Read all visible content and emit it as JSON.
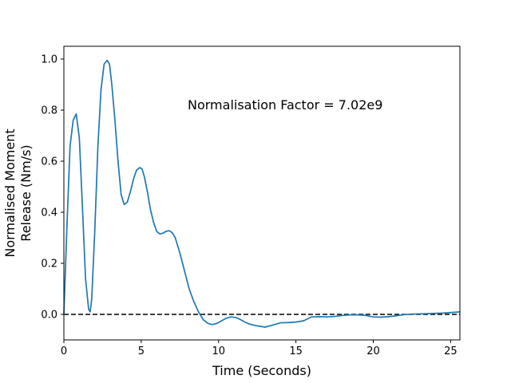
{
  "chart_data": {
    "type": "line",
    "xlabel": "Time (Seconds)",
    "ylabel_lines": [
      "Normalised Moment",
      "Release (Nm/s)"
    ],
    "annotation": "Normalisation Factor = 7.02e9",
    "xlim": [
      0,
      25.6
    ],
    "ylim": [
      -0.1,
      1.05
    ],
    "xticks": [
      0,
      5,
      10,
      15,
      20,
      25
    ],
    "xtick_labels": [
      "0",
      "5",
      "10",
      "15",
      "20",
      "25"
    ],
    "yticks": [
      0.0,
      0.2,
      0.4,
      0.6,
      0.8,
      1.0
    ],
    "ytick_labels": [
      "0.0",
      "0.2",
      "0.4",
      "0.6",
      "0.8",
      "1.0"
    ],
    "grid": false,
    "reference_line": {
      "y": 0,
      "style": "dashed",
      "color": "#000000"
    },
    "series": [
      {
        "color": "#1f77b4",
        "x": [
          0,
          0.2,
          0.4,
          0.6,
          0.8,
          1.0,
          1.2,
          1.4,
          1.6,
          1.7,
          1.8,
          2.0,
          2.2,
          2.4,
          2.6,
          2.8,
          2.95,
          3.1,
          3.3,
          3.5,
          3.7,
          3.9,
          4.1,
          4.3,
          4.5,
          4.7,
          4.9,
          5.05,
          5.2,
          5.4,
          5.6,
          5.8,
          6.0,
          6.2,
          6.4,
          6.6,
          6.8,
          7.0,
          7.2,
          7.5,
          7.8,
          8.1,
          8.4,
          8.7,
          9.0,
          9.3,
          9.6,
          9.9,
          10.2,
          10.5,
          10.8,
          11.1,
          11.4,
          11.7,
          12.0,
          12.5,
          13.0,
          13.5,
          14.0,
          14.5,
          15.0,
          15.5,
          16.0,
          16.5,
          17.0,
          17.5,
          18.0,
          18.5,
          19.0,
          19.5,
          20.0,
          20.5,
          21.0,
          21.5,
          22.0,
          22.5,
          23.0,
          23.5,
          24.0,
          24.5,
          25.0,
          25.6
        ],
        "y": [
          0.0,
          0.35,
          0.66,
          0.76,
          0.785,
          0.69,
          0.42,
          0.14,
          0.02,
          0.01,
          0.06,
          0.33,
          0.66,
          0.88,
          0.98,
          0.995,
          0.98,
          0.9,
          0.76,
          0.6,
          0.47,
          0.43,
          0.44,
          0.48,
          0.53,
          0.565,
          0.575,
          0.57,
          0.54,
          0.48,
          0.41,
          0.36,
          0.325,
          0.315,
          0.318,
          0.325,
          0.328,
          0.32,
          0.3,
          0.24,
          0.17,
          0.1,
          0.05,
          0.01,
          -0.02,
          -0.035,
          -0.04,
          -0.035,
          -0.025,
          -0.015,
          -0.01,
          -0.012,
          -0.02,
          -0.03,
          -0.038,
          -0.045,
          -0.05,
          -0.042,
          -0.033,
          -0.032,
          -0.03,
          -0.025,
          -0.01,
          -0.009,
          -0.01,
          -0.008,
          -0.004,
          -0.002,
          -0.002,
          -0.004,
          -0.01,
          -0.011,
          -0.009,
          -0.005,
          -0.001,
          0.001,
          0.002,
          0.003,
          0.004,
          0.005,
          0.007,
          0.01
        ]
      }
    ]
  }
}
